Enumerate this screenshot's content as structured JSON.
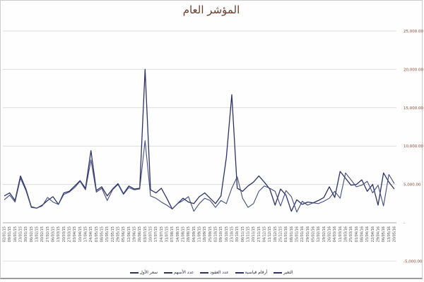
{
  "title": "المؤشر العام",
  "colors": {
    "title": "#6e3a2c",
    "line_primary": "#2c3168",
    "line_secondary": "#454c82",
    "grid": "#dcdcdc",
    "grid_zero": "#ababab",
    "grid_bottom": "#e3e3e3",
    "y_labels": "#8a4438",
    "x_labels": "#4f4f4f",
    "legend_text": "#23263a"
  },
  "y_axis": {
    "values": [
      25000,
      20000,
      15000,
      10000,
      5000,
      0,
      -5000
    ],
    "labels": [
      "25,000.00",
      "20,000.00",
      "15,000.00",
      "10,000.00",
      "5,000.00",
      "-",
      "-5,000.00"
    ]
  },
  "chart_data": {
    "type": "line",
    "title": "المؤشر العام",
    "xlabel": "",
    "ylabel": "",
    "ylim": [
      -5000,
      25000
    ],
    "y_tick_interval": 5000,
    "grid": true,
    "legend_position": "bottom",
    "legend_entries": [
      "التغير",
      "أرقام قياسية",
      "عدد العقود",
      "عدد الأسهم",
      "سعر الأول"
    ],
    "categories": [
      "02/01/15",
      "09/01/15",
      "16/01/15",
      "23/01/15",
      "30/01/15",
      "06/02/15",
      "13/02/15",
      "20/02/15",
      "27/02/15",
      "06/03/15",
      "13/03/15",
      "20/03/15",
      "27/03/15",
      "03/04/15",
      "10/04/15",
      "17/04/15",
      "24/04/15",
      "01/05/15",
      "08/05/15",
      "15/05/15",
      "22/05/15",
      "29/05/15",
      "05/06/15",
      "12/06/15",
      "19/06/15",
      "26/06/15",
      "03/07/15",
      "10/07/15",
      "17/07/15",
      "24/07/15",
      "31/07/15",
      "07/08/15",
      "14/08/15",
      "21/08/15",
      "28/08/15",
      "04/09/15",
      "11/09/15",
      "18/09/15",
      "25/09/15",
      "02/10/15",
      "09/10/15",
      "16/10/15",
      "23/10/15",
      "30/10/15",
      "06/11/15",
      "13/11/15",
      "20/11/15",
      "27/11/15",
      "04/12/15",
      "11/12/15",
      "18/12/15",
      "25/12/15",
      "01/01/16",
      "08/01/16",
      "15/01/16",
      "22/01/16",
      "29/01/16",
      "05/02/16",
      "12/02/16",
      "19/02/16",
      "26/02/16",
      "04/03/16",
      "11/03/16",
      "18/03/16",
      "25/03/16",
      "01/04/16",
      "08/04/16",
      "15/04/16",
      "22/04/16",
      "29/04/16",
      "06/05/16",
      "13/05/16",
      "20/05/16"
    ],
    "series": [
      {
        "name": "عدد الأسهم",
        "values": [
          3500,
          3900,
          2900,
          6100,
          4400,
          2100,
          1900,
          2300,
          2900,
          3400,
          2400,
          3900,
          4100,
          4800,
          5500,
          4500,
          9400,
          4200,
          4700,
          3500,
          4400,
          5100,
          3800,
          4800,
          4400,
          4500,
          20000,
          4300,
          3900,
          4500,
          3200,
          1800,
          2500,
          3200,
          2700,
          2500,
          3400,
          3900,
          3200,
          2500,
          3500,
          8500,
          16700,
          4500,
          4100,
          4800,
          5300,
          6100,
          5300,
          4400,
          2300,
          4400,
          3600,
          1500,
          3000,
          2400,
          2700,
          2600,
          2900,
          3300,
          4700,
          3300,
          6700,
          5800,
          4900,
          5000,
          5600,
          4100,
          5000,
          2300,
          6500,
          5300,
          4400
        ]
      },
      {
        "name": "عدد العقود",
        "values": [
          3000,
          3600,
          2700,
          5800,
          4200,
          2000,
          1900,
          2200,
          3300,
          2700,
          2400,
          3700,
          4000,
          4600,
          5400,
          4300,
          8200,
          4000,
          4500,
          2900,
          4300,
          5000,
          3700,
          4600,
          4300,
          4400,
          10700,
          3500,
          3200,
          2700,
          2300,
          1800,
          2500,
          2900,
          3400,
          1500,
          2500,
          3200,
          2900,
          2000,
          2900,
          2500,
          4500,
          6000,
          3200,
          2000,
          2500,
          4100,
          4800,
          4500,
          4100,
          2200,
          4200,
          3400,
          1400,
          2800,
          2300,
          2600,
          2500,
          2800,
          3200,
          4100,
          3200,
          6500,
          5600,
          4700,
          4900,
          5400,
          3900,
          4900,
          2200,
          6300,
          5100
        ]
      }
    ]
  }
}
